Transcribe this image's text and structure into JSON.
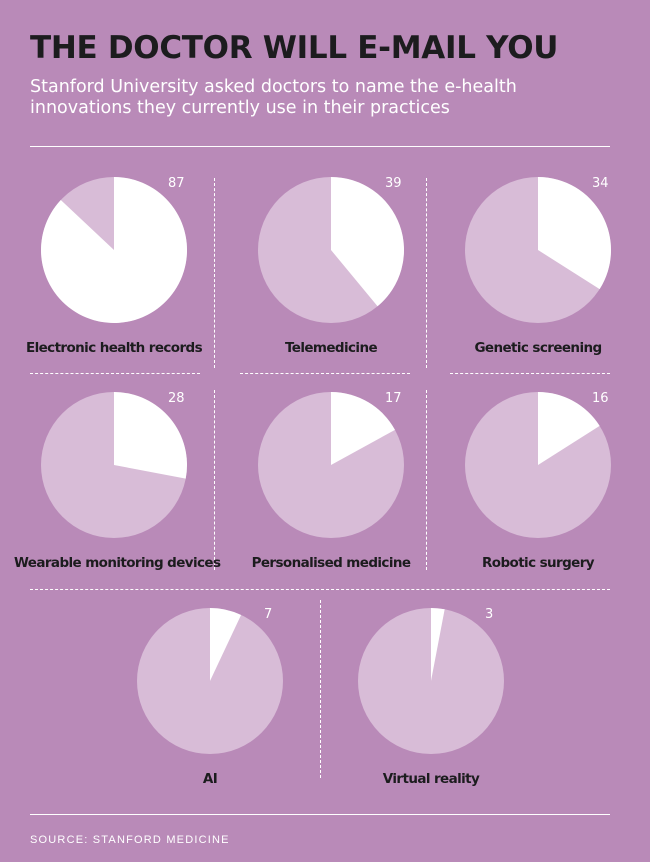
{
  "header": {
    "title": "THE DOCTOR WILL E-MAIL YOU",
    "subtitle": "Stanford University asked doctors to name the e-health innovations they currently use in their practices"
  },
  "footer": {
    "source": "SOURCE: STANFORD MEDICINE"
  },
  "colors": {
    "background": "#b98ab8",
    "pie_base": "#d8bcd7",
    "pie_highlight": "#ffffff",
    "text_dark": "#1c1c1e"
  },
  "chart_data": {
    "type": "pie",
    "unit": "percent",
    "items": [
      {
        "label": "Electronic health records",
        "value": 87
      },
      {
        "label": "Telemedicine",
        "value": 39
      },
      {
        "label": "Genetic screening",
        "value": 34
      },
      {
        "label": "Wearable monitoring devices",
        "value": 28
      },
      {
        "label": "Personalised medicine",
        "value": 17
      },
      {
        "label": "Robotic surgery",
        "value": 16
      },
      {
        "label": "AI",
        "value": 7
      },
      {
        "label": "Virtual reality",
        "value": 3
      }
    ]
  }
}
